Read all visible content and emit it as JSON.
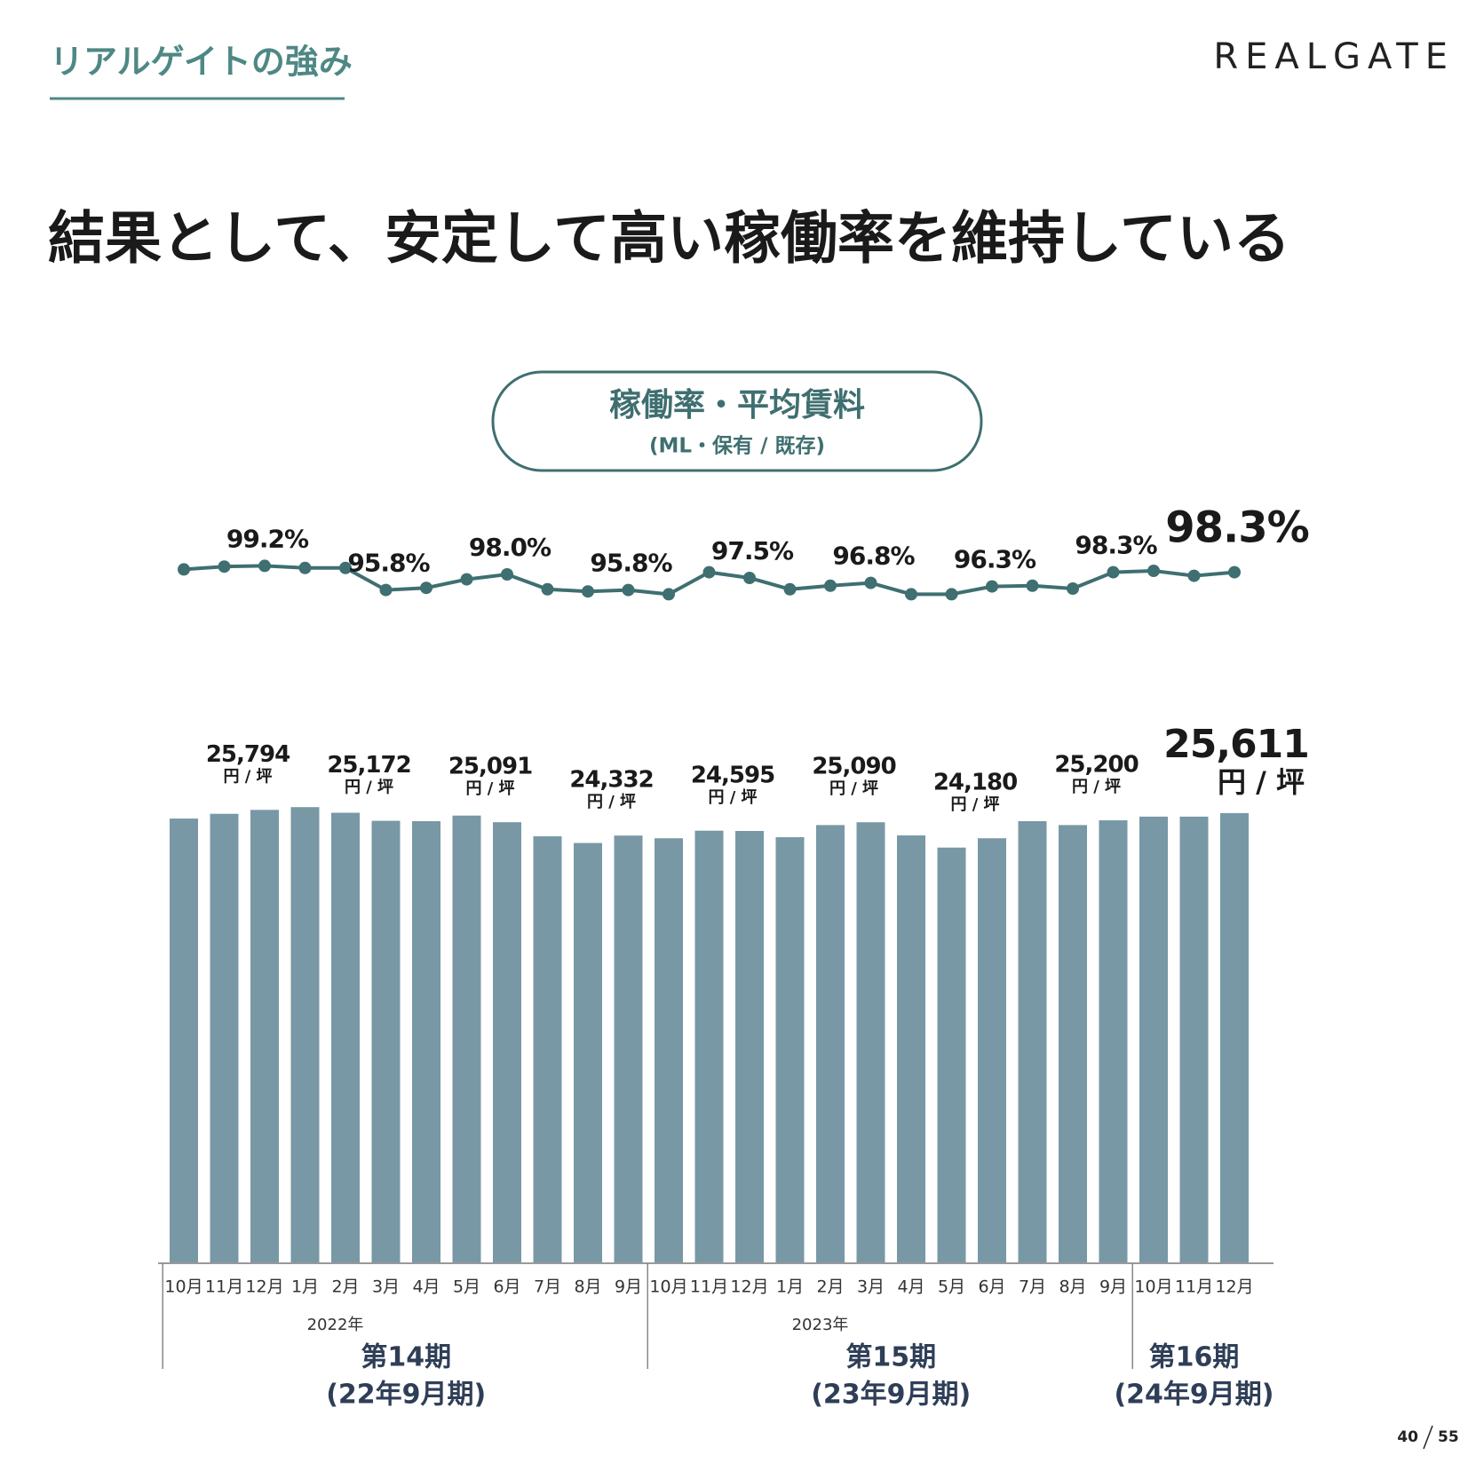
{
  "header": {
    "section": "リアルゲイトの強み",
    "logo": "REALGATE",
    "title": "結果として、安定して高い稼働率を維持している"
  },
  "chart_data": {
    "type": "bar",
    "title": "稼働率・平均賃料",
    "subtitle": "(ML・保有 / 既存)",
    "categories": [
      "10月",
      "11月",
      "12月",
      "1月",
      "2月",
      "3月",
      "4月",
      "5月",
      "6月",
      "7月",
      "8月",
      "9月",
      "10月",
      "11月",
      "12月",
      "1月",
      "2月",
      "3月",
      "4月",
      "5月",
      "6月",
      "7月",
      "8月",
      "9月",
      "10月",
      "11月",
      "12月"
    ],
    "years": [
      "2022年",
      "2023年"
    ],
    "periods": [
      {
        "label": "第14期",
        "sub": "(22年9月期)"
      },
      {
        "label": "第15期",
        "sub": "(23年9月期)"
      },
      {
        "label": "第16期",
        "sub": "(24年9月期)"
      }
    ],
    "ylim": [
      0,
      30000
    ],
    "y2lim": [
      94,
      100
    ],
    "series": [
      {
        "type": "line",
        "axis": "y2",
        "color": "#3f6f70",
        "values": [
          98.7,
          99.1,
          99.2,
          98.9,
          98.9,
          95.8,
          96.1,
          97.3,
          98.0,
          95.9,
          95.6,
          95.8,
          95.2,
          98.3,
          97.5,
          95.9,
          96.4,
          96.8,
          95.2,
          95.2,
          96.3,
          96.4,
          96.0,
          98.3,
          98.5,
          97.8,
          98.3
        ],
        "value_labels": [
          null,
          null,
          "99.2%",
          null,
          null,
          "95.8%",
          null,
          null,
          "98.0%",
          null,
          null,
          "95.8%",
          null,
          null,
          "97.5%",
          null,
          null,
          "96.8%",
          null,
          null,
          "96.3%",
          null,
          null,
          "98.3%",
          null,
          null,
          "98.3%"
        ]
      },
      {
        "type": "bar",
        "color": "#7898a6",
        "unit_label": "円 / 坪",
        "values": [
          25300,
          25570,
          25794,
          25950,
          25630,
          25172,
          25150,
          25470,
          25091,
          24290,
          23910,
          24332,
          24180,
          24610,
          24595,
          24240,
          24930,
          25090,
          24340,
          23650,
          24180,
          25150,
          24930,
          25200,
          25410,
          25410,
          25611
        ],
        "value_labels": [
          null,
          null,
          "25,794",
          null,
          null,
          "25,172",
          null,
          null,
          "25,091",
          null,
          null,
          "24,332",
          null,
          null,
          "24,595",
          null,
          null,
          "25,090",
          null,
          null,
          "24,180",
          null,
          null,
          "25,200",
          null,
          null,
          "25,611"
        ]
      }
    ]
  },
  "page": {
    "current": "40",
    "total": "55"
  }
}
